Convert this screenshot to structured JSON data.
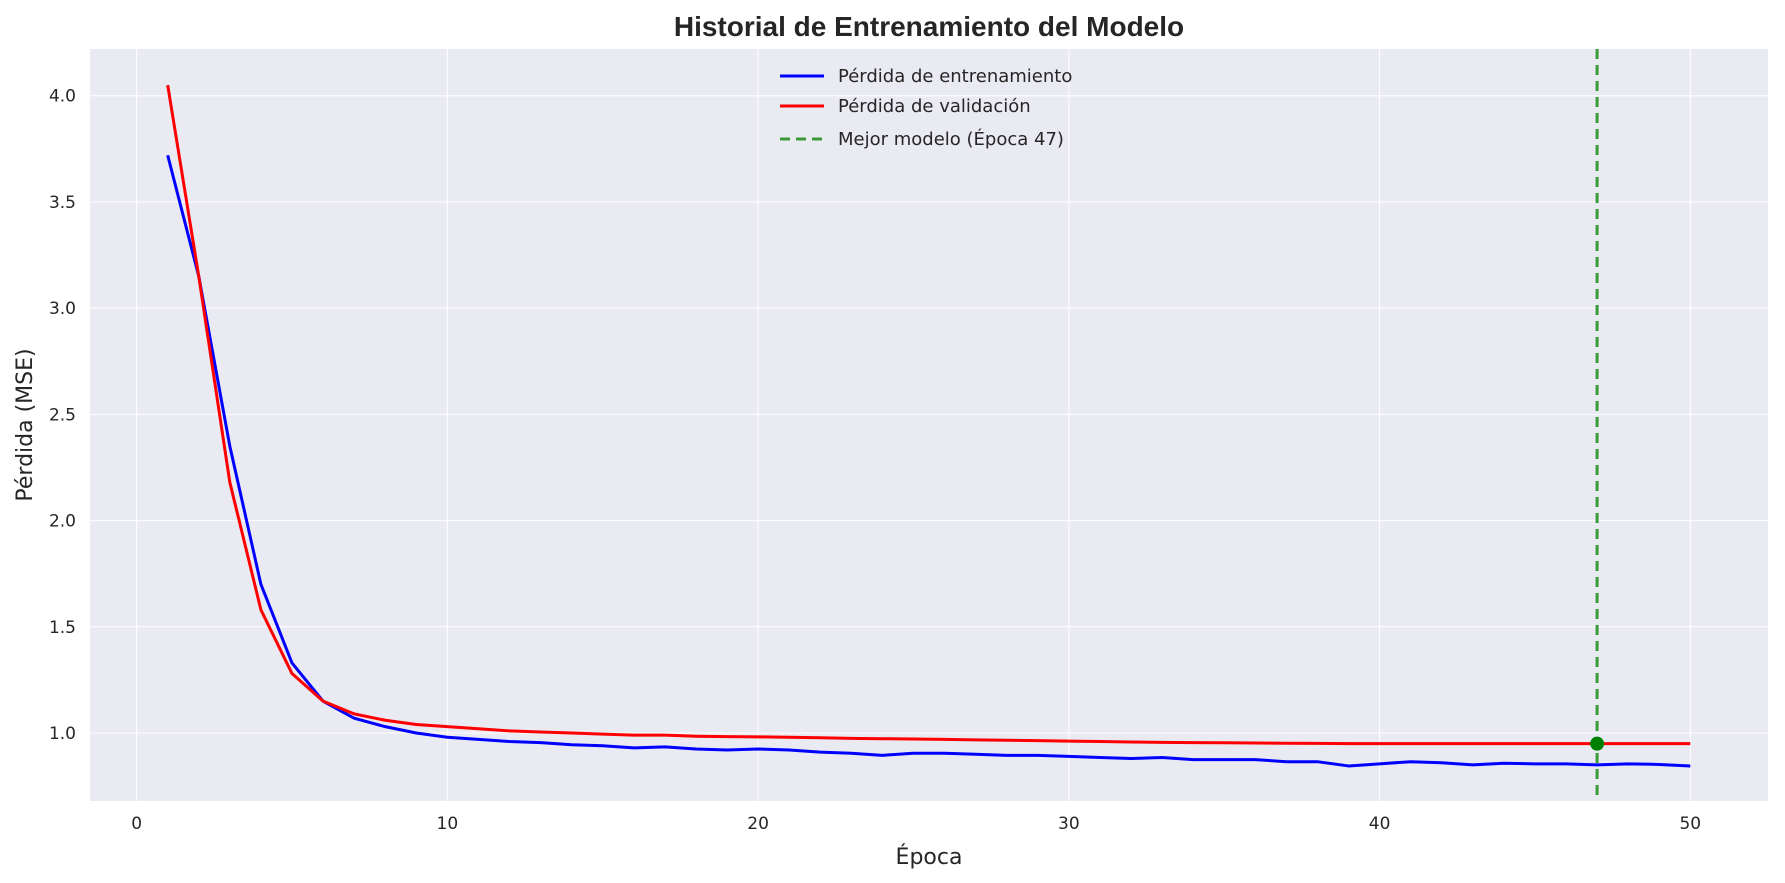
{
  "chart_data": {
    "type": "line",
    "title": "Historial de Entrenamiento del Modelo",
    "xlabel": "Época",
    "ylabel": "Pérdida (MSE)",
    "xlim": [
      -1.5,
      52.5
    ],
    "ylim": [
      0.68,
      4.22
    ],
    "xticks": [
      0,
      10,
      20,
      30,
      40,
      50
    ],
    "yticks": [
      1.0,
      1.5,
      2.0,
      2.5,
      3.0,
      3.5,
      4.0
    ],
    "grid": true,
    "legend_position": "top-center",
    "colors": {
      "plot_bg": "#eaeaf2",
      "grid": "#ffffff",
      "train": "#0000ff",
      "val": "#ff0000",
      "best": "#3a9a3a"
    },
    "x": [
      1,
      2,
      3,
      4,
      5,
      6,
      7,
      8,
      9,
      10,
      11,
      12,
      13,
      14,
      15,
      16,
      17,
      18,
      19,
      20,
      21,
      22,
      23,
      24,
      25,
      26,
      27,
      28,
      29,
      30,
      31,
      32,
      33,
      34,
      35,
      36,
      37,
      38,
      39,
      40,
      41,
      42,
      43,
      44,
      45,
      46,
      47,
      48,
      49,
      50
    ],
    "series": [
      {
        "name": "Pérdida de entrenamiento",
        "color": "#0000ff",
        "values": [
          3.72,
          3.15,
          2.35,
          1.7,
          1.33,
          1.15,
          1.07,
          1.03,
          1.0,
          0.98,
          0.97,
          0.96,
          0.955,
          0.945,
          0.94,
          0.93,
          0.935,
          0.925,
          0.92,
          0.925,
          0.92,
          0.91,
          0.905,
          0.895,
          0.905,
          0.905,
          0.9,
          0.895,
          0.895,
          0.89,
          0.885,
          0.88,
          0.885,
          0.875,
          0.875,
          0.875,
          0.865,
          0.865,
          0.845,
          0.855,
          0.865,
          0.86,
          0.85,
          0.858,
          0.855,
          0.855,
          0.85,
          0.855,
          0.852,
          0.845
        ]
      },
      {
        "name": "Pérdida de validación",
        "color": "#ff0000",
        "values": [
          4.05,
          3.15,
          2.18,
          1.58,
          1.28,
          1.15,
          1.09,
          1.06,
          1.04,
          1.03,
          1.02,
          1.01,
          1.005,
          1.0,
          0.995,
          0.99,
          0.99,
          0.985,
          0.983,
          0.982,
          0.98,
          0.978,
          0.975,
          0.973,
          0.972,
          0.97,
          0.968,
          0.966,
          0.964,
          0.962,
          0.96,
          0.958,
          0.956,
          0.955,
          0.954,
          0.953,
          0.952,
          0.951,
          0.95,
          0.95,
          0.95,
          0.95,
          0.95,
          0.95,
          0.95,
          0.95,
          0.95,
          0.95,
          0.95,
          0.95
        ]
      }
    ],
    "best_model": {
      "label": "Mejor modelo (Época 47)",
      "epoch": 47,
      "value": 0.95,
      "color": "#3a9a3a"
    }
  }
}
